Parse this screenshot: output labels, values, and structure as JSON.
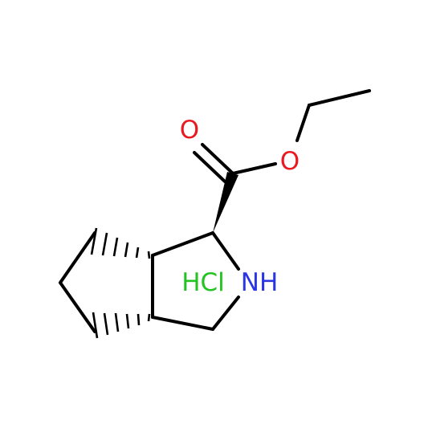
{
  "atoms": [
    {
      "label": "O"
    },
    {
      "label": "O"
    },
    {
      "label": "NH"
    }
  ],
  "salt": {
    "label": "HCl"
  }
}
